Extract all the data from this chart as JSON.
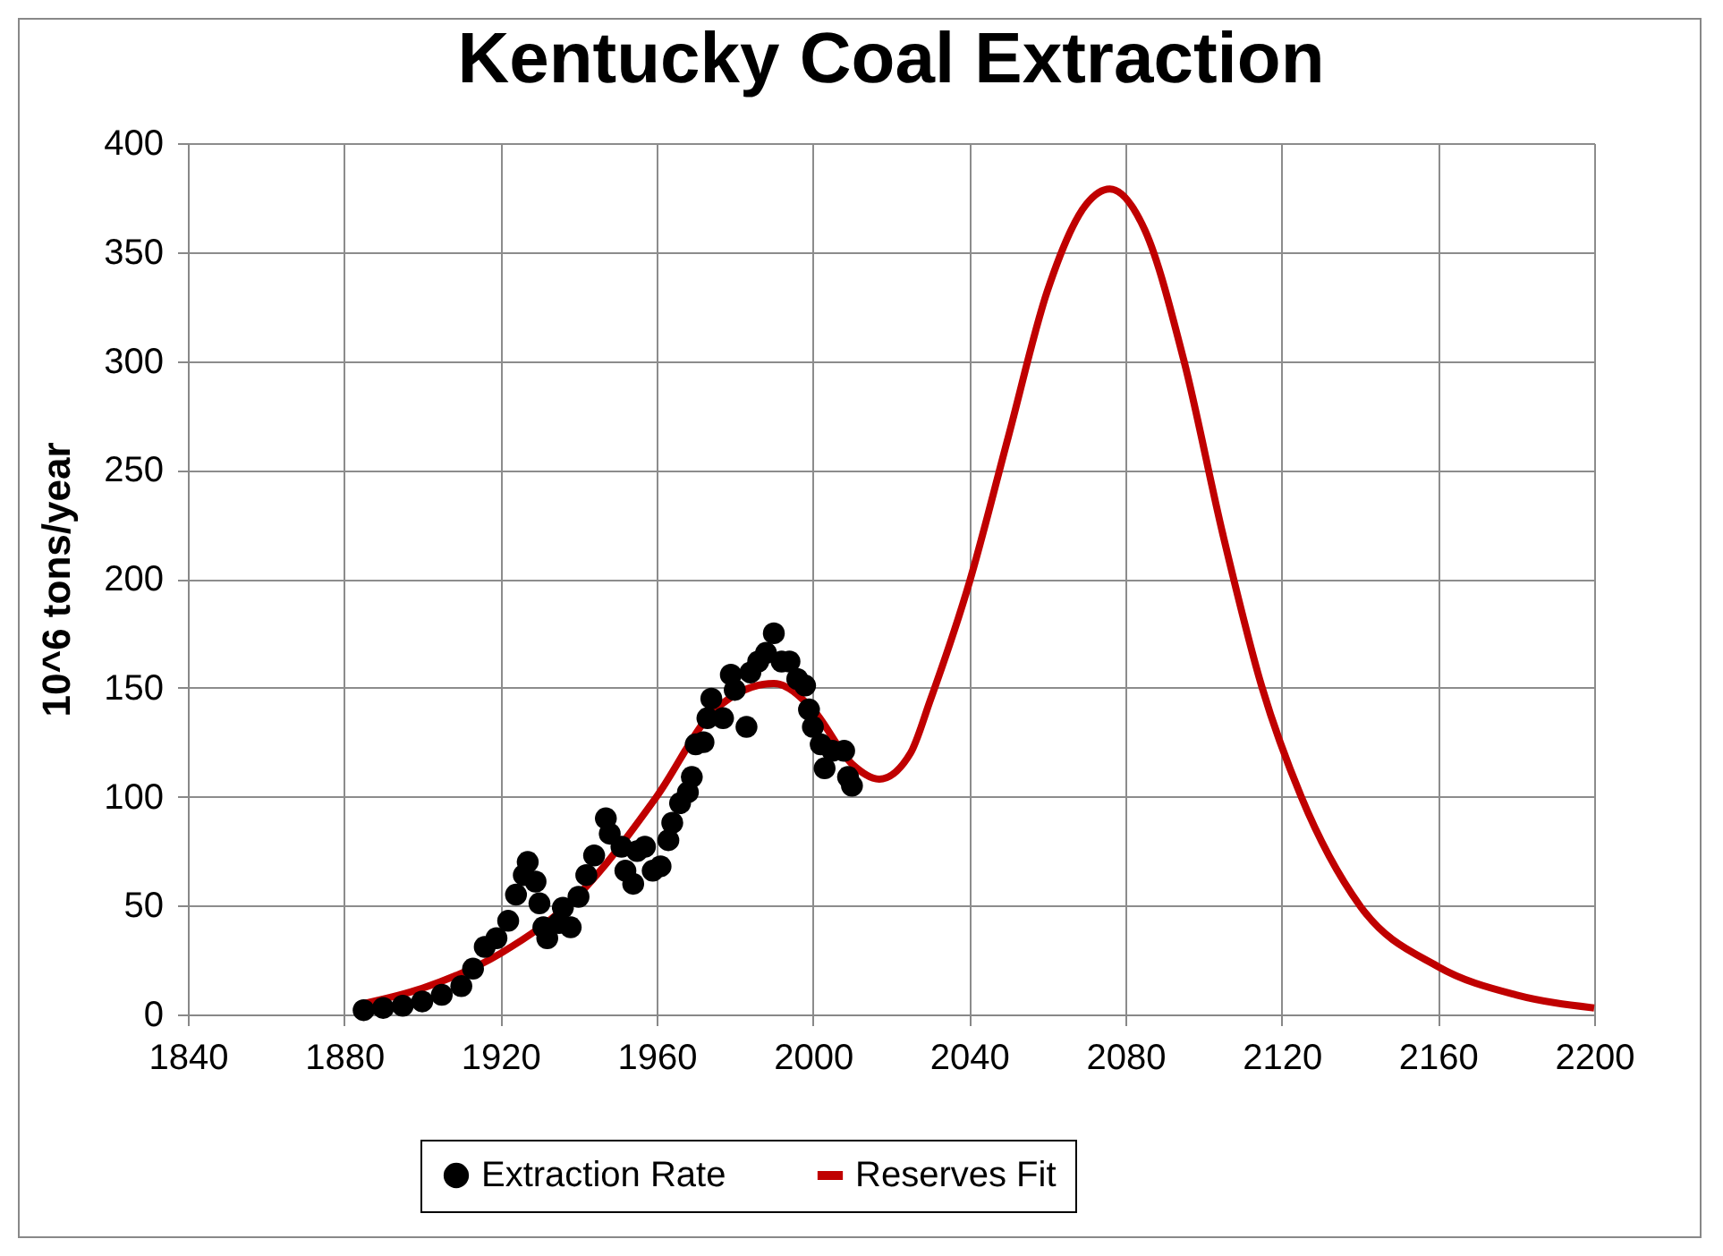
{
  "chart_data": {
    "type": "scatter",
    "title": "Kentucky Coal Extraction",
    "ylabel": "10^6 tons/year",
    "xlim": [
      1840,
      2200
    ],
    "xticks": [
      1840,
      1880,
      1920,
      1960,
      2000,
      2040,
      2080,
      2120,
      2160,
      2200
    ],
    "ylim": [
      0,
      400
    ],
    "yticks": [
      0,
      50,
      100,
      150,
      200,
      250,
      300,
      350,
      400
    ],
    "grid": true,
    "legend": "bottom",
    "series": [
      {
        "name": "Extraction Rate",
        "color": "#000000",
        "marker": "circle",
        "x": [
          1885,
          1890,
          1895,
          1900,
          1905,
          1910,
          1913,
          1916,
          1919,
          1922,
          1924,
          1926,
          1927,
          1929,
          1930,
          1931,
          1932,
          1935,
          1936,
          1938,
          1940,
          1942,
          1944,
          1947,
          1948,
          1951,
          1952,
          1954,
          1955,
          1957,
          1959,
          1961,
          1963,
          1964,
          1966,
          1968,
          1969,
          1970,
          1972,
          1973,
          1974,
          1977,
          1979,
          1980,
          1983,
          1984,
          1986,
          1988,
          1990,
          1992,
          1994,
          1996,
          1998,
          1999,
          2000,
          2002,
          2003,
          2005,
          2008,
          2009,
          2010
        ],
        "values": [
          2,
          3,
          4,
          6,
          9,
          13,
          21,
          31,
          35,
          43,
          55,
          64,
          70,
          61,
          51,
          40,
          35,
          42,
          49,
          40,
          54,
          64,
          73,
          90,
          83,
          77,
          66,
          60,
          75,
          77,
          66,
          68,
          80,
          88,
          97,
          102,
          109,
          124,
          125,
          136,
          145,
          136,
          156,
          149,
          132,
          157,
          162,
          166,
          175,
          162,
          162,
          154,
          151,
          140,
          132,
          124,
          113,
          121,
          121,
          109,
          105
        ]
      },
      {
        "name": "Reserves Fit",
        "type": "line",
        "color": "#c00000",
        "line_style": "solid",
        "x": [
          1885,
          1900,
          1920,
          1940,
          1960,
          1975,
          1990,
          2000,
          2010,
          2017,
          2025,
          2030,
          2040,
          2050,
          2060,
          2070,
          2076,
          2085,
          2095,
          2105,
          2115,
          2125,
          2140,
          2160,
          2180,
          2200
        ],
        "values": [
          5,
          12,
          28,
          55,
          100,
          140,
          152,
          140,
          115,
          108,
          120,
          144,
          198,
          265,
          332,
          372,
          379,
          360,
          300,
          220,
          150,
          100,
          50,
          22,
          9,
          3
        ]
      }
    ]
  }
}
